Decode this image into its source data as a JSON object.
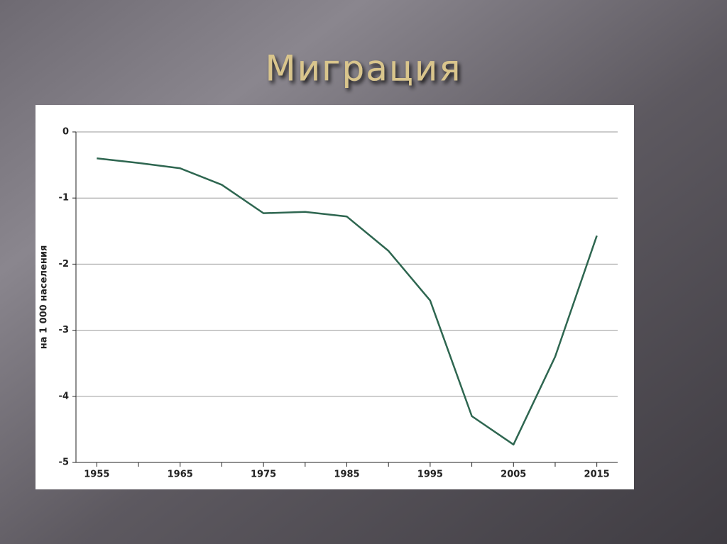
{
  "chart_data": {
    "type": "line",
    "title": "Миграция",
    "y_label": "на 1 000 населения",
    "x": [
      1955,
      1960,
      1965,
      1970,
      1975,
      1980,
      1985,
      1990,
      1995,
      2000,
      2005,
      2010,
      2015
    ],
    "series": [
      {
        "color": "#2e6650",
        "values": [
          -0.4,
          -0.47,
          -0.55,
          -0.8,
          -1.23,
          -1.21,
          -1.28,
          -1.8,
          -2.55,
          -4.3,
          -4.73,
          -3.4,
          -1.57
        ]
      }
    ],
    "xlim": [
      1952.5,
      2017.5
    ],
    "xticks": [
      1955,
      1965,
      1975,
      1985,
      1995,
      2005,
      2015
    ],
    "xminor_ticks": [
      1960,
      1970,
      1980,
      1990,
      2000,
      2010
    ],
    "ylim": [
      -5,
      0
    ],
    "yticks": [
      0,
      -1,
      -2,
      -3,
      -4,
      -5
    ],
    "grid": true
  }
}
